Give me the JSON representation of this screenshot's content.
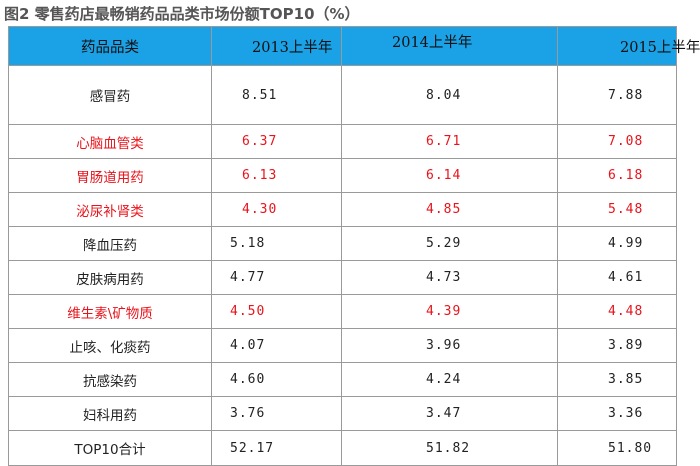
{
  "title": "图2 零售药店最畅销药品品类市场份额TOP10（%）",
  "colors": {
    "header_bg": "#1aa1e6",
    "highlight_text": "#e8141b",
    "border": "#9a9a9a"
  },
  "headers": [
    "药品品类",
    "2013上半年",
    "2014上半年",
    "2015上半年"
  ],
  "rows": [
    {
      "name": "感冒药",
      "v2013": "8.51",
      "v2014": "8.04",
      "v2015": "7.88",
      "highlight": false
    },
    {
      "name": "心脑血管类",
      "v2013": "6.37",
      "v2014": "6.71",
      "v2015": "7.08",
      "highlight": true
    },
    {
      "name": "胃肠道用药",
      "v2013": "6.13",
      "v2014": "6.14",
      "v2015": "6.18",
      "highlight": true
    },
    {
      "name": "泌尿补肾类",
      "v2013": "4.30",
      "v2014": "4.85",
      "v2015": "5.48",
      "highlight": true
    },
    {
      "name": "降血压药",
      "v2013": "5.18",
      "v2014": "5.29",
      "v2015": "4.99",
      "highlight": false
    },
    {
      "name": "皮肤病用药",
      "v2013": "4.77",
      "v2014": "4.73",
      "v2015": "4.61",
      "highlight": false
    },
    {
      "name": "维生素\\矿物质",
      "v2013": "4.50",
      "v2014": "4.39",
      "v2015": "4.48",
      "highlight": true
    },
    {
      "name": "止咳、化痰药",
      "v2013": "4.07",
      "v2014": "3.96",
      "v2015": "3.89",
      "highlight": false
    },
    {
      "name": "抗感染药",
      "v2013": "4.60",
      "v2014": "4.24",
      "v2015": "3.85",
      "highlight": false
    },
    {
      "name": "妇科用药",
      "v2013": "3.76",
      "v2014": "3.47",
      "v2015": "3.36",
      "highlight": false
    },
    {
      "name": "TOP10合计",
      "v2013": "52.17",
      "v2014": "51.82",
      "v2015": "51.80",
      "highlight": false
    }
  ]
}
